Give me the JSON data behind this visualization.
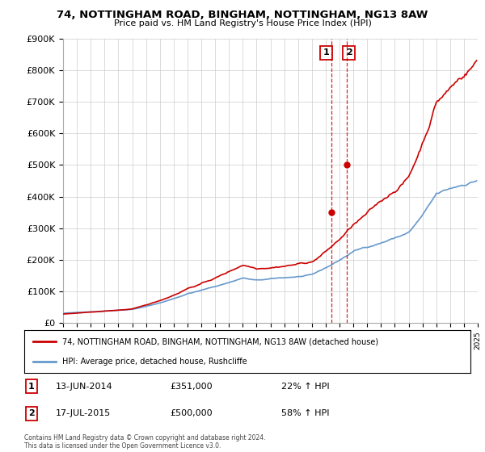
{
  "title": "74, NOTTINGHAM ROAD, BINGHAM, NOTTINGHAM, NG13 8AW",
  "subtitle": "Price paid vs. HM Land Registry's House Price Index (HPI)",
  "ylim": [
    0,
    900000
  ],
  "yticks": [
    0,
    100000,
    200000,
    300000,
    400000,
    500000,
    600000,
    700000,
    800000,
    900000
  ],
  "ytick_labels": [
    "£0",
    "£100K",
    "£200K",
    "£300K",
    "£400K",
    "£500K",
    "£600K",
    "£700K",
    "£800K",
    "£900K"
  ],
  "sale1_year": 2014.44,
  "sale1_price": 351000,
  "sale1_label": "1",
  "sale2_year": 2015.54,
  "sale2_price": 500000,
  "sale2_label": "2",
  "red_line_color": "#cc0000",
  "blue_line_color": "#6699cc",
  "legend_label_red": "74, NOTTINGHAM ROAD, BINGHAM, NOTTINGHAM, NG13 8AW (detached house)",
  "legend_label_blue": "HPI: Average price, detached house, Rushcliffe",
  "annotation1_date": "13-JUN-2014",
  "annotation1_price": "£351,000",
  "annotation1_hpi": "22% ↑ HPI",
  "annotation2_date": "17-JUL-2015",
  "annotation2_price": "£500,000",
  "annotation2_hpi": "58% ↑ HPI",
  "footer": "Contains HM Land Registry data © Crown copyright and database right 2024.\nThis data is licensed under the Open Government Licence v3.0.",
  "background_color": "#ffffff",
  "grid_color": "#cccccc"
}
